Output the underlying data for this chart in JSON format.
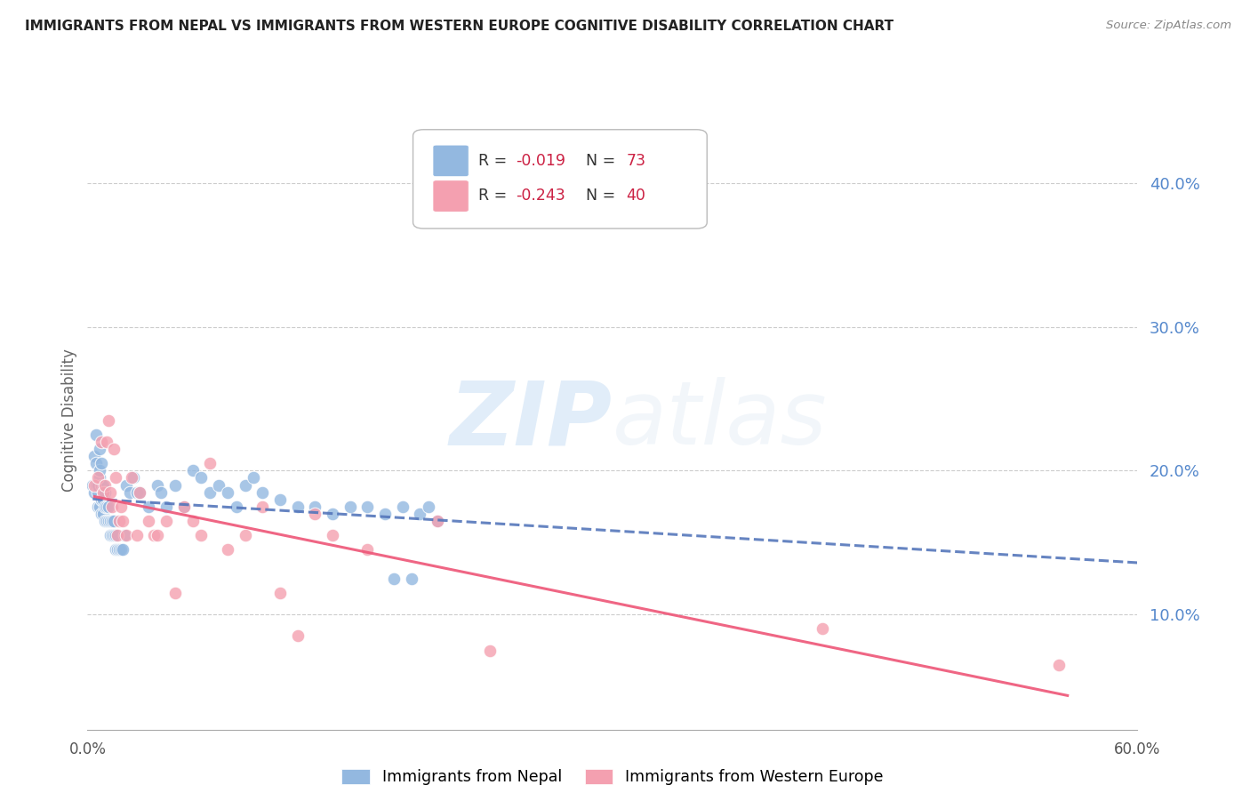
{
  "title": "IMMIGRANTS FROM NEPAL VS IMMIGRANTS FROM WESTERN EUROPE COGNITIVE DISABILITY CORRELATION CHART",
  "source": "Source: ZipAtlas.com",
  "ylabel": "Cognitive Disability",
  "ytick_values": [
    0.1,
    0.2,
    0.3,
    0.4
  ],
  "xlim": [
    0.0,
    0.6
  ],
  "ylim": [
    0.02,
    0.45
  ],
  "nepal_color": "#93B8E0",
  "western_europe_color": "#F4A0B0",
  "trend_nepal_color": "#5577BB",
  "trend_western_europe_color": "#EE5577",
  "watermark_zip": "ZIP",
  "watermark_atlas": "atlas",
  "nepal_x": [
    0.003,
    0.004,
    0.004,
    0.005,
    0.005,
    0.005,
    0.006,
    0.006,
    0.006,
    0.007,
    0.007,
    0.007,
    0.007,
    0.008,
    0.008,
    0.008,
    0.008,
    0.009,
    0.009,
    0.009,
    0.01,
    0.01,
    0.01,
    0.011,
    0.011,
    0.012,
    0.012,
    0.013,
    0.013,
    0.014,
    0.014,
    0.015,
    0.015,
    0.016,
    0.016,
    0.017,
    0.018,
    0.019,
    0.02,
    0.021,
    0.022,
    0.024,
    0.026,
    0.028,
    0.03,
    0.035,
    0.04,
    0.042,
    0.045,
    0.05,
    0.055,
    0.06,
    0.065,
    0.07,
    0.075,
    0.08,
    0.085,
    0.09,
    0.095,
    0.1,
    0.11,
    0.12,
    0.13,
    0.14,
    0.15,
    0.16,
    0.17,
    0.175,
    0.18,
    0.185,
    0.19,
    0.195,
    0.2
  ],
  "nepal_y": [
    0.19,
    0.21,
    0.185,
    0.19,
    0.205,
    0.225,
    0.175,
    0.185,
    0.19,
    0.195,
    0.2,
    0.215,
    0.175,
    0.17,
    0.18,
    0.19,
    0.205,
    0.17,
    0.18,
    0.19,
    0.165,
    0.175,
    0.185,
    0.165,
    0.175,
    0.165,
    0.175,
    0.155,
    0.165,
    0.155,
    0.165,
    0.155,
    0.165,
    0.145,
    0.155,
    0.145,
    0.145,
    0.145,
    0.145,
    0.155,
    0.19,
    0.185,
    0.195,
    0.185,
    0.185,
    0.175,
    0.19,
    0.185,
    0.175,
    0.19,
    0.175,
    0.2,
    0.195,
    0.185,
    0.19,
    0.185,
    0.175,
    0.19,
    0.195,
    0.185,
    0.18,
    0.175,
    0.175,
    0.17,
    0.175,
    0.175,
    0.17,
    0.125,
    0.175,
    0.125,
    0.17,
    0.175,
    0.165
  ],
  "western_europe_x": [
    0.004,
    0.006,
    0.008,
    0.009,
    0.01,
    0.011,
    0.012,
    0.013,
    0.014,
    0.015,
    0.016,
    0.017,
    0.018,
    0.019,
    0.02,
    0.022,
    0.025,
    0.028,
    0.03,
    0.035,
    0.038,
    0.04,
    0.045,
    0.05,
    0.055,
    0.06,
    0.065,
    0.07,
    0.08,
    0.09,
    0.1,
    0.11,
    0.12,
    0.13,
    0.14,
    0.16,
    0.2,
    0.23,
    0.42,
    0.555
  ],
  "western_europe_y": [
    0.19,
    0.195,
    0.22,
    0.185,
    0.19,
    0.22,
    0.235,
    0.185,
    0.175,
    0.215,
    0.195,
    0.155,
    0.165,
    0.175,
    0.165,
    0.155,
    0.195,
    0.155,
    0.185,
    0.165,
    0.155,
    0.155,
    0.165,
    0.115,
    0.175,
    0.165,
    0.155,
    0.205,
    0.145,
    0.155,
    0.175,
    0.115,
    0.085,
    0.17,
    0.155,
    0.145,
    0.165,
    0.075,
    0.09,
    0.065
  ]
}
